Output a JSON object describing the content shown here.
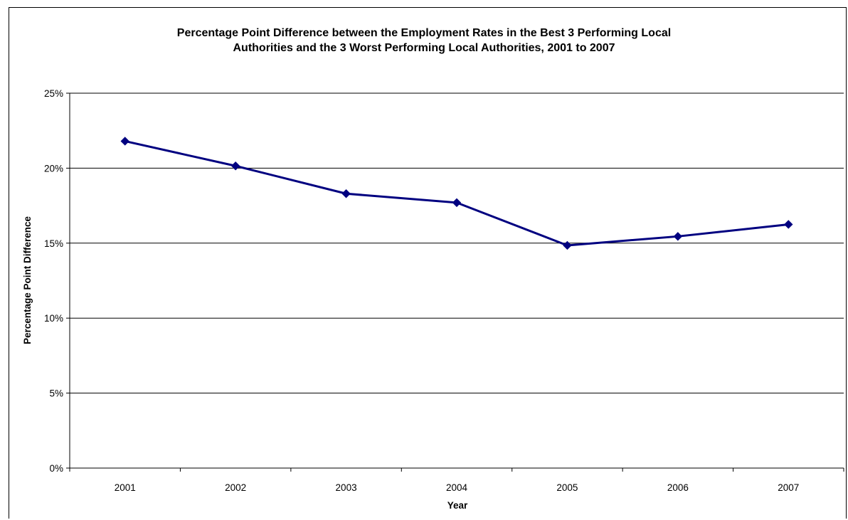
{
  "chart_data": {
    "type": "line",
    "title_line1": "Percentage Point Difference between the Employment Rates in the Best 3 Performing Local",
    "title_line2": "Authorities and the 3 Worst Performing Local Authorities, 2001 to 2007",
    "xlabel": "Year",
    "ylabel": "Percentage Point Difference",
    "categories": [
      "2001",
      "2002",
      "2003",
      "2004",
      "2005",
      "2006",
      "2007"
    ],
    "y_ticks": [
      "0%",
      "5%",
      "10%",
      "15%",
      "20%",
      "25%"
    ],
    "ylim": [
      0,
      25
    ],
    "grid": true,
    "legend": "none",
    "series": [
      {
        "values": [
          21.8,
          20.15,
          18.3,
          17.7,
          14.85,
          15.45,
          16.25
        ],
        "color": "#000080"
      }
    ]
  }
}
